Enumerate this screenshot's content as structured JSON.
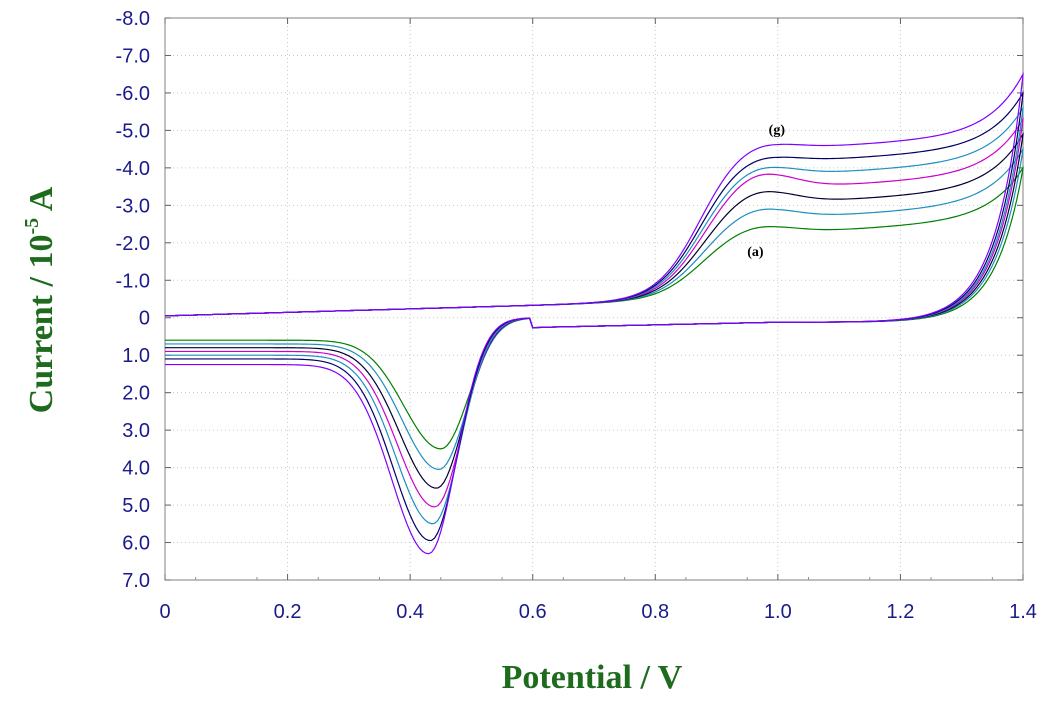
{
  "chart_data": {
    "type": "line",
    "xlabel": "Potential / V",
    "ylabel_main": "Current / 10",
    "ylabel_exp": "-5",
    "ylabel_unit": " A",
    "xlim": [
      0,
      1.4
    ],
    "ylim": [
      -8.0,
      7.0
    ],
    "y_inverted": true,
    "x_ticks": [
      "0",
      "0.2",
      "0.4",
      "0.6",
      "0.8",
      "1.0",
      "1.2",
      "1.4"
    ],
    "y_ticks": [
      "-8.0",
      "-7.0",
      "-6.0",
      "-5.0",
      "-4.0",
      "-3.0",
      "-2.0",
      "-1.0",
      "0",
      "1.0",
      "2.0",
      "3.0",
      "4.0",
      "5.0",
      "6.0",
      "7.0"
    ],
    "annotations": [
      {
        "text": "(g)",
        "x": 0.985,
        "y": -4.9
      },
      {
        "text": "(a)",
        "x": 0.95,
        "y": -1.65
      }
    ],
    "series": [
      {
        "color": "#008000",
        "ox_peak": -2.25,
        "ox_valley": -2.1,
        "vertex": -4.0,
        "red_peak": 3.5,
        "red_peak_x": 0.45,
        "start": 0.6,
        "end": -3.4
      },
      {
        "color": "#1e8fc0",
        "ox_peak": -2.7,
        "ox_valley": -2.5,
        "vertex": -4.5,
        "red_peak": 4.05,
        "red_peak_x": 0.447,
        "start": 0.7,
        "end": -3.9
      },
      {
        "color": "#000033",
        "ox_peak": -3.15,
        "ox_valley": -2.9,
        "vertex": -4.9,
        "red_peak": 4.55,
        "red_peak_x": 0.443,
        "start": 0.8,
        "end": -4.4
      },
      {
        "color": "#cc00cc",
        "ox_peak": -3.6,
        "ox_valley": -3.3,
        "vertex": -5.3,
        "red_peak": 5.05,
        "red_peak_x": 0.44,
        "start": 0.9,
        "end": -4.9
      },
      {
        "color": "#1e8fc0",
        "ox_peak": -3.85,
        "ox_valley": -3.65,
        "vertex": -5.6,
        "red_peak": 5.5,
        "red_peak_x": 0.437,
        "start": 1.0,
        "end": -5.3
      },
      {
        "color": "#000066",
        "ox_peak": -4.15,
        "ox_valley": -4.0,
        "vertex": -6.0,
        "red_peak": 5.95,
        "red_peak_x": 0.433,
        "start": 1.1,
        "end": -5.8
      },
      {
        "color": "#8000ff",
        "ox_peak": -4.5,
        "ox_valley": -4.35,
        "vertex": -6.5,
        "red_peak": 6.3,
        "red_peak_x": 0.43,
        "start": 1.25,
        "end": -6.4
      }
    ]
  }
}
